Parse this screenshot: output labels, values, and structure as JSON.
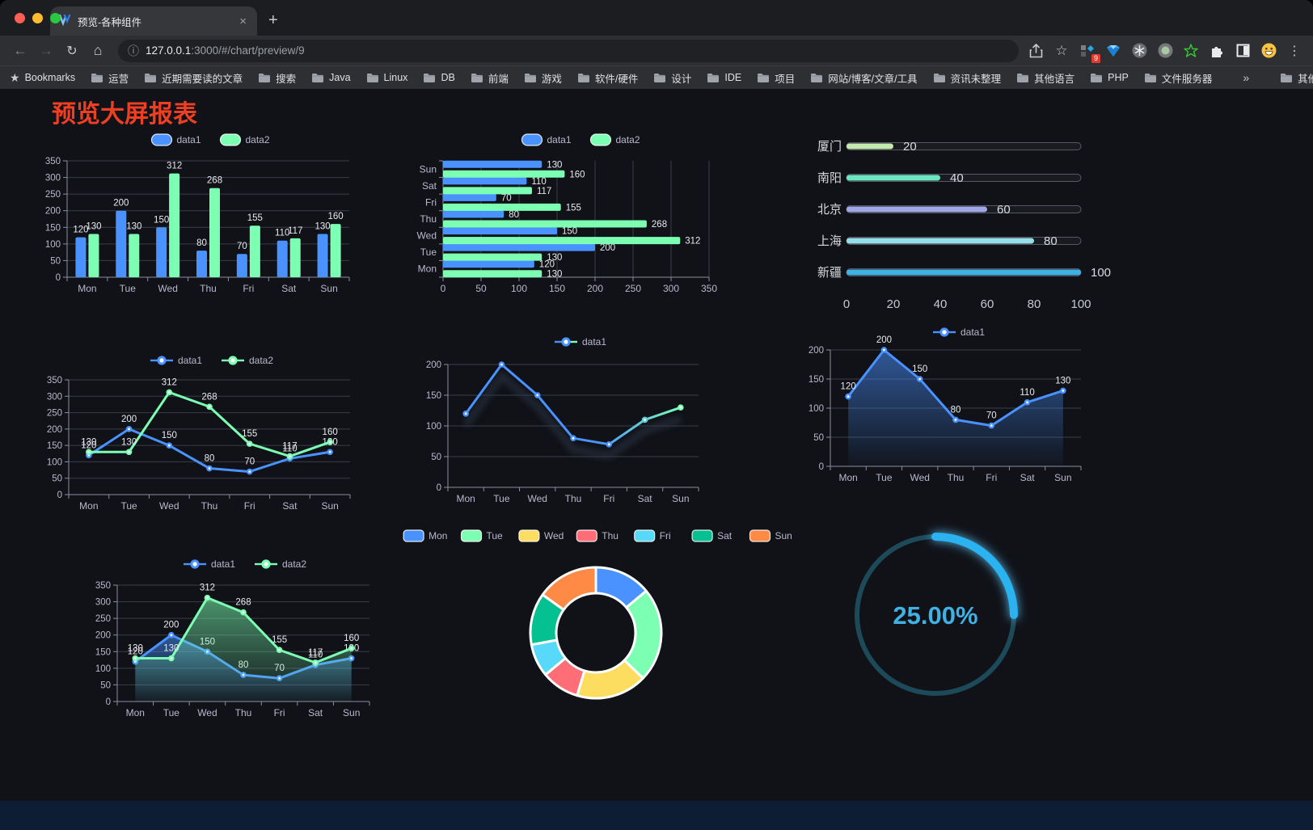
{
  "browser": {
    "tab_title": "预览-各种组件",
    "url_host_bold": "127.0.0.1",
    "url_rest": ":3000/#/chart/preview/9",
    "bookmarks_label": "Bookmarks",
    "bookmarks": [
      "运营",
      "近期需要读的文章",
      "搜索",
      "Java",
      "Linux",
      "DB",
      "前端",
      "游戏",
      "软件/硬件",
      "设计",
      "IDE",
      "项目",
      "网站/博客/文章/工具",
      "资讯未整理",
      "其他语言",
      "PHP",
      "文件服务器"
    ],
    "overflow_chevron": "»",
    "other_bookmarks": "其他书签",
    "extension_badge": "9",
    "new_tab_glyph": "+",
    "close_glyph": "×"
  },
  "page": {
    "title": "预览大屏报表",
    "title_color": "#ee3f22",
    "background": "#101218"
  },
  "chart_data": [
    {
      "id": "bar-grouped",
      "type": "bar",
      "categories": [
        "Mon",
        "Tue",
        "Wed",
        "Thu",
        "Fri",
        "Sat",
        "Sun"
      ],
      "series": [
        {
          "name": "data1",
          "color": "#4992ff",
          "values": [
            120,
            200,
            150,
            80,
            70,
            110,
            130
          ]
        },
        {
          "name": "data2",
          "color": "#7cffb2",
          "values": [
            130,
            130,
            312,
            268,
            155,
            117,
            160
          ]
        }
      ],
      "legend": [
        "data1",
        "data2"
      ],
      "ymax": 350,
      "yticks": [
        0,
        50,
        100,
        150,
        200,
        250,
        300,
        350
      ],
      "grid": true,
      "labels": true
    },
    {
      "id": "bar-horizontal",
      "type": "bar-horizontal",
      "categories": [
        "Mon",
        "Tue",
        "Wed",
        "Thu",
        "Fri",
        "Sat",
        "Sun"
      ],
      "categories_top_to_bottom": [
        "Sun",
        "Sat",
        "Fri",
        "Thu",
        "Wed",
        "Tue",
        "Mon"
      ],
      "series": [
        {
          "name": "data1",
          "color": "#4992ff",
          "values": [
            120,
            200,
            150,
            80,
            70,
            110,
            130
          ]
        },
        {
          "name": "data2",
          "color": "#7cffb2",
          "values": [
            130,
            130,
            312,
            268,
            155,
            117,
            160
          ]
        }
      ],
      "legend": [
        "data1",
        "data2"
      ],
      "xmax": 350,
      "xticks": [
        0,
        50,
        100,
        150,
        200,
        250,
        300,
        350
      ],
      "grid": true,
      "labels": true
    },
    {
      "id": "progress-list",
      "type": "bar-progress",
      "categories": [
        "厦门",
        "南阳",
        "北京",
        "上海",
        "新疆"
      ],
      "values": [
        20,
        40,
        60,
        80,
        100
      ],
      "colors": [
        "#c4ebad",
        "#6be6c1",
        "#a0a7e6",
        "#96dee8",
        "#3fb1e3"
      ],
      "xmax": 100,
      "xticks": [
        0,
        20,
        40,
        60,
        80,
        100
      ]
    },
    {
      "id": "line-two-series",
      "type": "line",
      "categories": [
        "Mon",
        "Tue",
        "Wed",
        "Thu",
        "Fri",
        "Sat",
        "Sun"
      ],
      "series": [
        {
          "name": "data1",
          "color": "#4992ff",
          "values": [
            120,
            200,
            150,
            80,
            70,
            110,
            130
          ]
        },
        {
          "name": "data2",
          "color": "#7cffb2",
          "values": [
            130,
            130,
            312,
            268,
            155,
            117,
            160
          ]
        }
      ],
      "legend": [
        "data1",
        "data2"
      ],
      "ymax": 350,
      "yticks": [
        0,
        50,
        100,
        150,
        200,
        250,
        300,
        350
      ],
      "labels": true
    },
    {
      "id": "line-gradient",
      "type": "line",
      "categories": [
        "Mon",
        "Tue",
        "Wed",
        "Thu",
        "Fri",
        "Sat",
        "Sun"
      ],
      "series": [
        {
          "name": "data1",
          "colors": [
            "#4992ff",
            "#7cffb2"
          ],
          "values": [
            120,
            200,
            150,
            80,
            70,
            110,
            130
          ]
        }
      ],
      "legend": [
        "data1"
      ],
      "ymax": 200,
      "yticks": [
        0,
        50,
        100,
        150,
        200
      ],
      "labels": false,
      "gradient_line": true,
      "shadow": true
    },
    {
      "id": "area-single",
      "type": "area",
      "categories": [
        "Mon",
        "Tue",
        "Wed",
        "Thu",
        "Fri",
        "Sat",
        "Sun"
      ],
      "series": [
        {
          "name": "data1",
          "color": "#4992ff",
          "values": [
            120,
            200,
            150,
            80,
            70,
            110,
            130
          ]
        }
      ],
      "legend": [
        "data1"
      ],
      "ymax": 200,
      "yticks": [
        0,
        50,
        100,
        150,
        200
      ],
      "labels": true
    },
    {
      "id": "area-two-series",
      "type": "area",
      "categories": [
        "Mon",
        "Tue",
        "Wed",
        "Thu",
        "Fri",
        "Sat",
        "Sun"
      ],
      "series": [
        {
          "name": "data1",
          "color": "#4992ff",
          "values": [
            120,
            200,
            150,
            80,
            70,
            110,
            130
          ]
        },
        {
          "name": "data2",
          "color": "#7cffb2",
          "values": [
            130,
            130,
            312,
            268,
            155,
            117,
            160
          ]
        }
      ],
      "legend": [
        "data1",
        "data2"
      ],
      "ymax": 350,
      "yticks": [
        0,
        50,
        100,
        150,
        200,
        250,
        300,
        350
      ],
      "labels": true
    },
    {
      "id": "donut",
      "type": "pie",
      "categories": [
        "Mon",
        "Tue",
        "Wed",
        "Thu",
        "Fri",
        "Sat",
        "Sun"
      ],
      "values": [
        120,
        200,
        150,
        80,
        70,
        110,
        130
      ],
      "colors": [
        "#4992ff",
        "#7cffb2",
        "#fddd60",
        "#ff6e76",
        "#58d9f9",
        "#05c091",
        "#ff8a45"
      ],
      "legend_position": "top",
      "inner_radius": 49,
      "outer_radius": 81,
      "border_color": "#ffffff"
    },
    {
      "id": "gauge",
      "type": "progress-circle",
      "percent": 25,
      "label": "25.00%",
      "color": "#29b3f0",
      "track_color": "#1d4a59",
      "text_color": "#3fb1e3"
    }
  ]
}
